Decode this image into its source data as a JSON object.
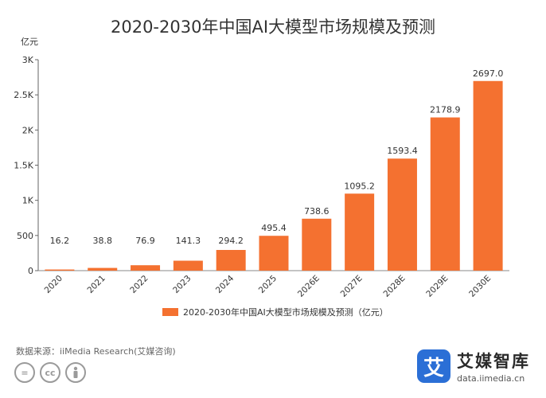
{
  "chart_data": {
    "type": "bar",
    "title": "2020-2030年中国AI大模型市场规模及预测",
    "ylabel": "亿元",
    "xlabel": "",
    "categories": [
      "2020",
      "2021",
      "2022",
      "2023",
      "2024",
      "2025",
      "2026E",
      "2027E",
      "2028E",
      "2029E",
      "2030E"
    ],
    "series": [
      {
        "name": "2020-2030年中国AI大模型市场规模及预测（亿元）",
        "values": [
          16.2,
          38.8,
          76.9,
          141.3,
          294.2,
          495.4,
          738.6,
          1095.2,
          1593.4,
          2178.9,
          2697.0
        ],
        "labels": [
          "16.2",
          "38.8",
          "76.9",
          "141.3",
          "294.2",
          "495.4",
          "738.6",
          "1095.2",
          "1593.4",
          "2178.9",
          "2697.0"
        ]
      }
    ],
    "ylim": [
      0,
      3000
    ],
    "yticks": [
      0,
      500,
      1000,
      1500,
      2000,
      2500,
      3000
    ],
    "ytick_labels": [
      "0",
      "500",
      "1K",
      "1.5K",
      "2K",
      "2.5K",
      "3K"
    ],
    "bar_color": "#f47130",
    "legend_position": "bottom",
    "grid": false
  },
  "footer": {
    "source": "数据来源：iiMedia Research(艾媒咨询)",
    "cc_icons": [
      "=",
      "cc",
      "person-icon"
    ],
    "brand_name": "艾媒智库",
    "brand_logo_glyph": "艾",
    "brand_url": "data.iimedia.cn"
  }
}
